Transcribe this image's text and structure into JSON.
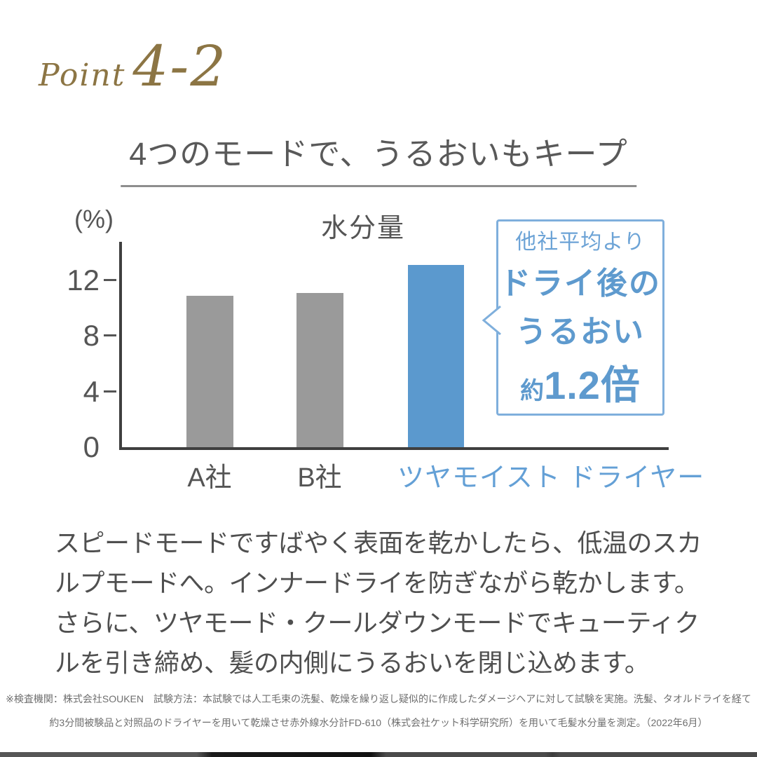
{
  "point_badge": {
    "label": "Point",
    "number": "4-2"
  },
  "title": "4つのモードで、うるおいもキープ",
  "chart_data": {
    "type": "bar",
    "title": "水分量",
    "unit_label": "(%)",
    "categories": [
      "A社",
      "B社",
      "ツヤモイスト ドライヤー"
    ],
    "values": [
      10.9,
      11.1,
      13.1
    ],
    "yticks": [
      0,
      4,
      8,
      12
    ],
    "ylim": [
      0,
      14.78
    ],
    "ylabel": "(%)",
    "xlabel": "",
    "grid": false,
    "legend": "none",
    "bar_colors": [
      "#9a9a9a",
      "#9a9a9a",
      "#5b99ce"
    ],
    "highlight_index": 2
  },
  "callout": {
    "line1": "他社平均より",
    "line2": "ドライ後の",
    "line3": "うるおい",
    "approx": "約",
    "value": "1.2倍"
  },
  "body_lines": [
    "スピードモードですばやく表面を乾かしたら、低温のスカ",
    "ルプモードへ。インナードライを防ぎながら乾かします。",
    "さらに、ツヤモード・クールダウンモードでキューティク",
    "ルを引き締め、髪の内側にうるおいを閉じ込めます。"
  ],
  "footnote_lines": [
    "※検査機関：株式会社SOUKEN　試験方法：本試験では人工毛束の洗髪、乾燥を繰り返し疑似的に作成したダメージヘアに対して試験を実施。洗髪、タオルドライを経て",
    "約3分間被験品と対照品のドライヤーを用いて乾燥させ赤外線水分計FD-610（株式会社ケット科学研究所）を用いて毛髪水分量を測定。（2022年6月）"
  ],
  "colors": {
    "accent_gold": "#8c7544",
    "title_gray": "#595959",
    "axis_dark": "#3f3f3f",
    "bar_gray": "#9a9a9a",
    "bar_blue": "#5b99ce",
    "bubble_border": "#7fafdc",
    "bubble_text": "#5e9ace",
    "x_label_blue": "#64a0d6",
    "body_text": "#4f4f4f",
    "footnote_text": "#6f6f6f"
  }
}
